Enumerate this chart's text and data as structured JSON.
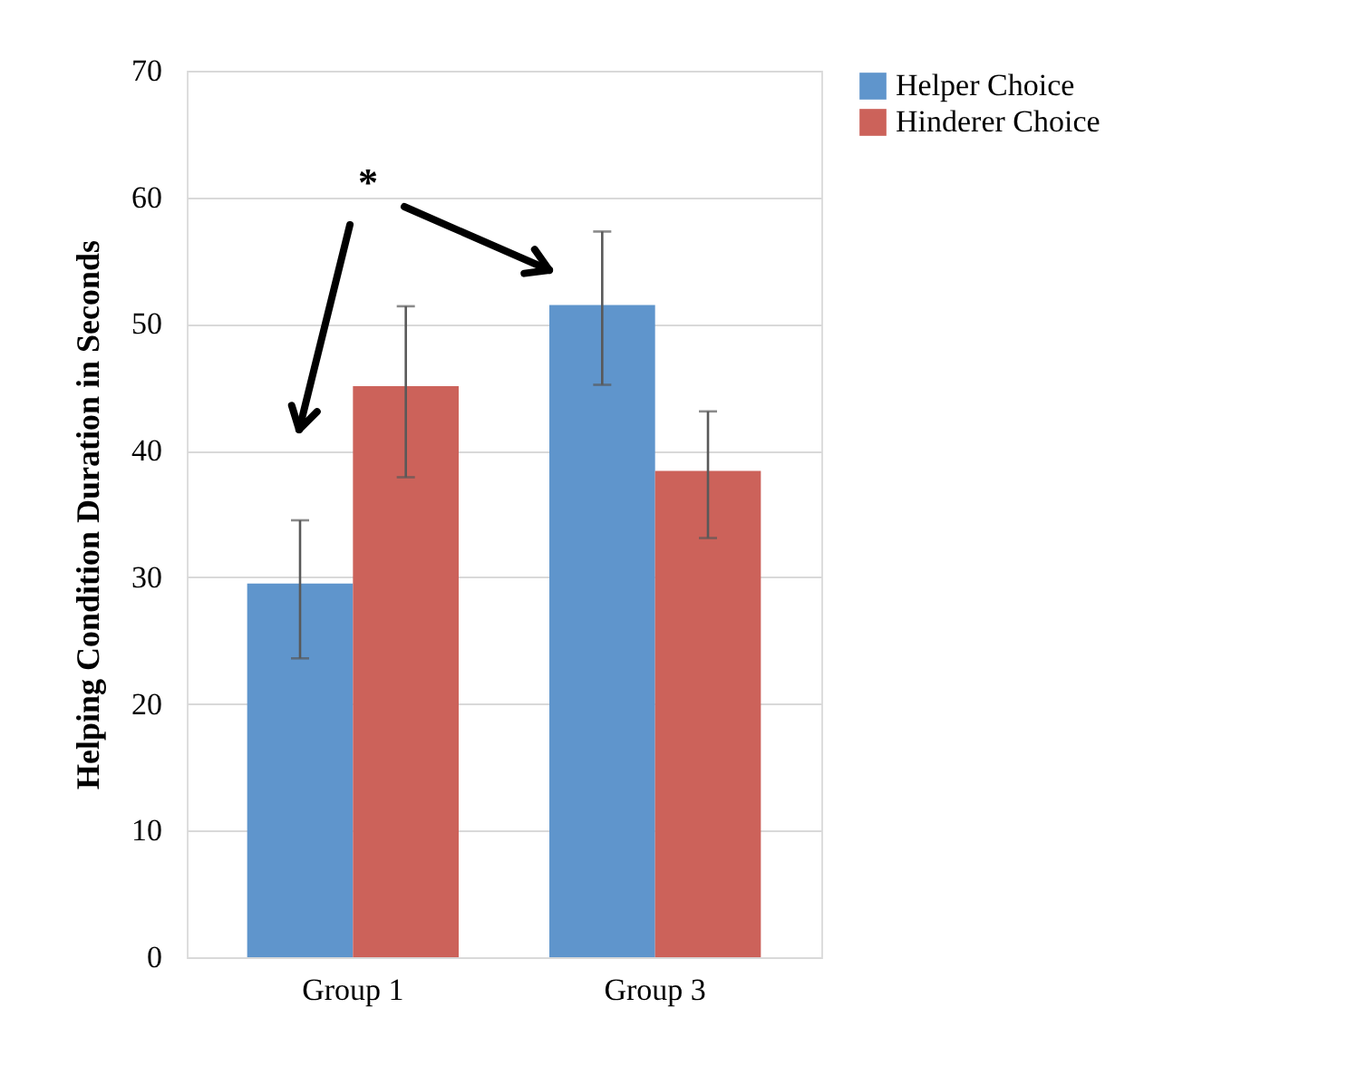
{
  "chart_data": {
    "type": "bar",
    "ylabel": "Helping Condition Duration in Seconds",
    "categories": [
      "Group 1",
      "Group 3"
    ],
    "series": [
      {
        "name": "Helper Choice",
        "color": "#5f95cc",
        "values": [
          29.5,
          51.5
        ],
        "errors": [
          [
            23.6,
            34.5
          ],
          [
            45.2,
            57.3
          ]
        ]
      },
      {
        "name": "Hinderer Choice",
        "color": "#cc625a",
        "values": [
          45.1,
          38.4
        ],
        "errors": [
          [
            37.9,
            51.4
          ],
          [
            33.1,
            43.1
          ]
        ]
      }
    ],
    "ylim": [
      0,
      70
    ],
    "yticks": [
      0,
      10,
      20,
      30,
      40,
      50,
      60,
      70
    ],
    "grid": "y",
    "legend": "right",
    "annotations": [
      "*"
    ]
  }
}
